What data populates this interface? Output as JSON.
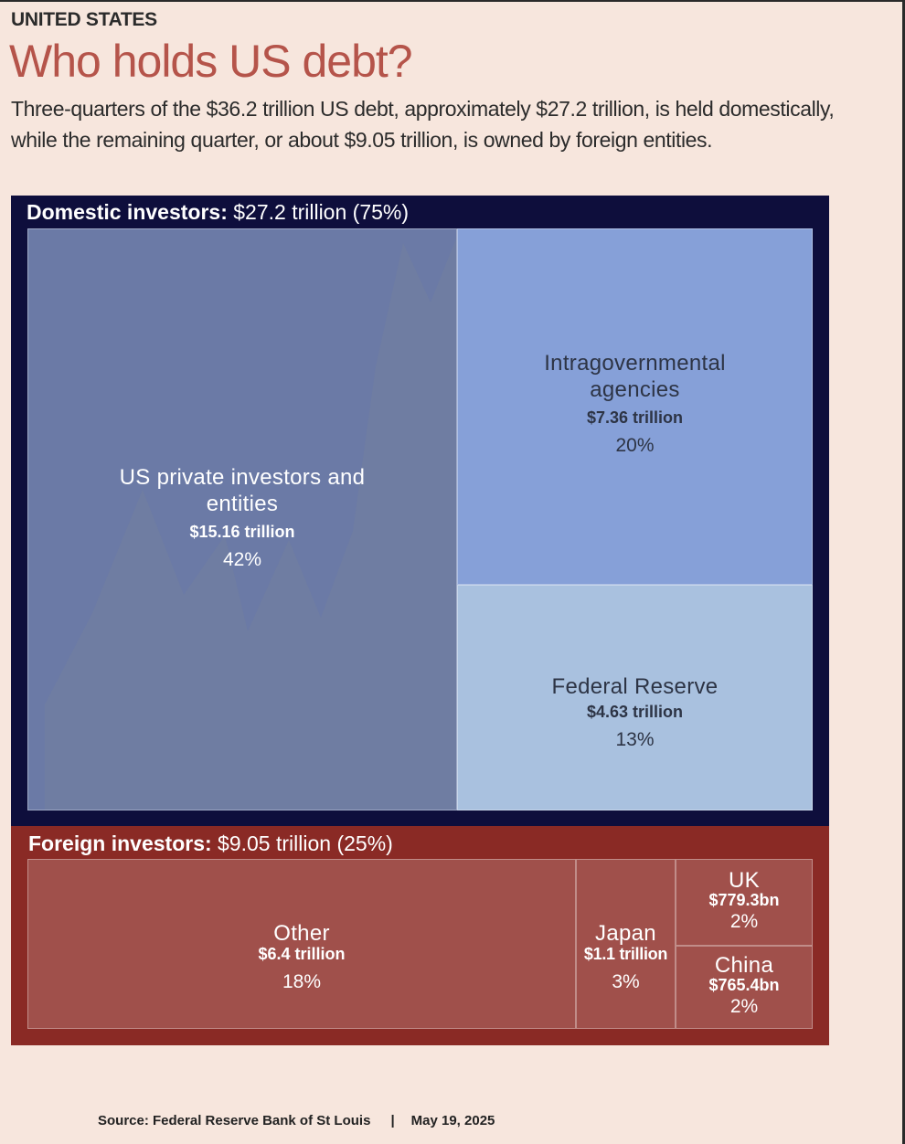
{
  "header": {
    "kicker": "UNITED STATES",
    "title": "Who holds US debt?",
    "subtitle": "Three-quarters of the $36.2 trillion US debt, approximately $27.2 trillion, is held domestically, while the remaining quarter, or about $9.05 trillion, is owned by foreign entities."
  },
  "colors": {
    "background": "#f7e6dd",
    "title": "#b5544a",
    "domestic_frame": "#0e0e3c",
    "foreign_frame": "#8a2a25",
    "private": "#6b7aa6",
    "intragovernmental": "#86a0d8",
    "federal_reserve": "#a9c1df",
    "foreign_tile": "#a0504b"
  },
  "chart_data": {
    "type": "treemap",
    "groups": [
      {
        "label_bold": "Domestic investors:",
        "label_rest": " $27.2 trillion (75%)",
        "value_trillion": 27.2,
        "share_pct": 75,
        "items": [
          {
            "name": "US private investors and entities",
            "amount": "$15.16 trillion",
            "pct": "42%",
            "value_trillion": 15.16
          },
          {
            "name": "Intragovernmental agencies",
            "amount": "$7.36 trillion",
            "pct": "20%",
            "value_trillion": 7.36
          },
          {
            "name": "Federal Reserve",
            "amount": "$4.63 trillion",
            "pct": "13%",
            "value_trillion": 4.63
          }
        ]
      },
      {
        "label_bold": "Foreign investors:",
        "label_rest": " $9.05 trillion (25%)",
        "value_trillion": 9.05,
        "share_pct": 25,
        "items": [
          {
            "name": "Other",
            "amount": "$6.4 trillion",
            "pct": "18%",
            "value_trillion": 6.4
          },
          {
            "name": "Japan",
            "amount": "$1.1 trillion",
            "pct": "3%",
            "value_trillion": 1.1
          },
          {
            "name": "UK",
            "amount": "$779.3bn",
            "pct": "2%",
            "value_trillion": 0.7793
          },
          {
            "name": "China",
            "amount": "$765.4bn",
            "pct": "2%",
            "value_trillion": 0.7654
          }
        ]
      }
    ]
  },
  "footer": {
    "source": "Source: Federal Reserve Bank of St Louis",
    "separator": "|",
    "date": "May 19, 2025"
  }
}
